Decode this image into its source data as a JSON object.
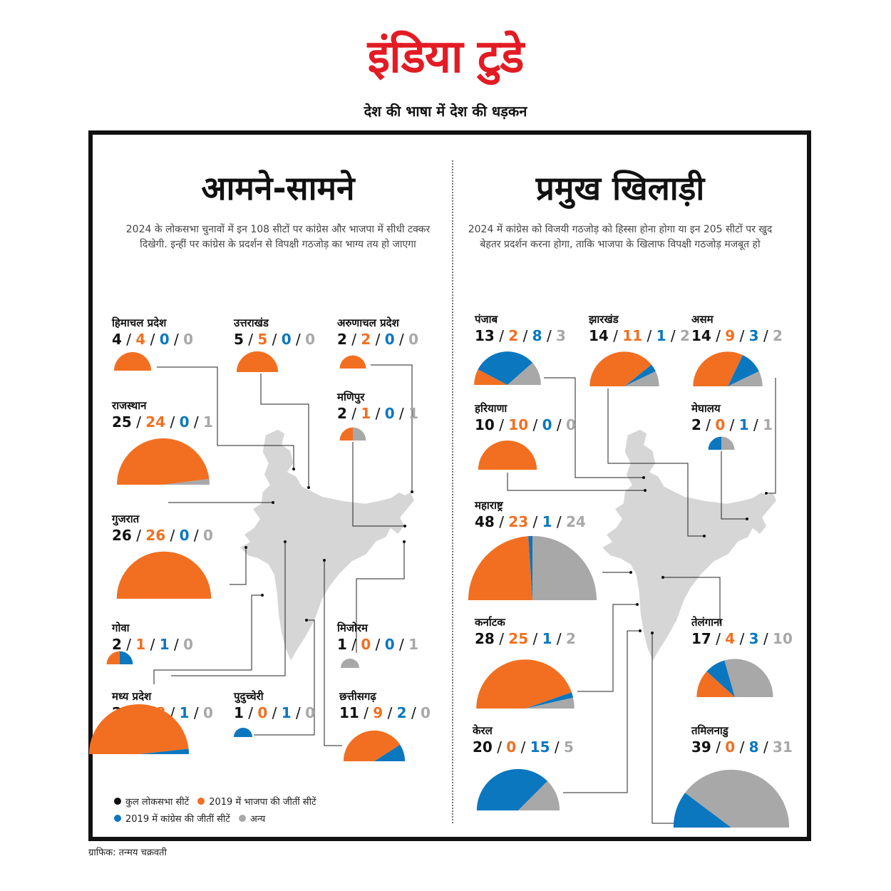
{
  "brand": {
    "name": "इंडिया टुडे",
    "tagline": "देश की भाषा में देश की धड़कन"
  },
  "colors": {
    "total": "#111111",
    "bjp": "#f26f21",
    "congress": "#0b77bf",
    "other": "#a8a8a8",
    "map": "#d6d6d6"
  },
  "sections": {
    "left": {
      "title": "आमने-सामने",
      "description": "2024 के लोकसभा चुनावों में इन 108 सीटों पर कांग्रेस और भाजपा में सीधी टक्कर दिखेगी. इन्हीं पर कांग्रेस के प्रदर्शन से विपक्षी गठजोड़ का भाग्य तय हो जाएगा"
    },
    "right": {
      "title": "प्रमुख खिलाड़ी",
      "description": "2024 में कांग्रेस को विजयी गठजोड़ को हिस्सा होना होगा या इन 205 सीटों पर खुद बेहतर प्रदर्शन करना होगा, ताकि भाजपा के खिलाफ विपक्षी गठजोड़ मजबूत हो"
    }
  },
  "legend": {
    "total": "कुल लोकसभा सीटें",
    "bjp": "2019 में भाजपा की जीतीं सीटें",
    "congress": "2019 में कांग्रेस की जीतीं सीटें",
    "other": "अन्य"
  },
  "credit": "ग्राफिक: तन्मय चक्रवती",
  "chart_data": {
    "type": "pie",
    "subtype": "semicircle",
    "value_order": [
      "total",
      "bjp",
      "congress",
      "other"
    ],
    "series": [
      {
        "name": "हिमाचल प्रदेश",
        "group": "left",
        "total": 4,
        "bjp": 4,
        "congress": 0,
        "other": 0
      },
      {
        "name": "उत्तराखंड",
        "group": "left",
        "total": 5,
        "bjp": 5,
        "congress": 0,
        "other": 0
      },
      {
        "name": "अरुणाचल प्रदेश",
        "group": "left",
        "total": 2,
        "bjp": 2,
        "congress": 0,
        "other": 0
      },
      {
        "name": "राजस्थान",
        "group": "left",
        "total": 25,
        "bjp": 24,
        "congress": 0,
        "other": 1
      },
      {
        "name": "मणिपुर",
        "group": "left",
        "total": 2,
        "bjp": 1,
        "congress": 0,
        "other": 1
      },
      {
        "name": "गुजरात",
        "group": "left",
        "total": 26,
        "bjp": 26,
        "congress": 0,
        "other": 0
      },
      {
        "name": "गोवा",
        "group": "left",
        "total": 2,
        "bjp": 1,
        "congress": 1,
        "other": 0
      },
      {
        "name": "मिजोरम",
        "group": "left",
        "total": 1,
        "bjp": 0,
        "congress": 0,
        "other": 1
      },
      {
        "name": "मध्य प्रदेश",
        "group": "left",
        "total": 29,
        "bjp": 28,
        "congress": 1,
        "other": 0
      },
      {
        "name": "पुदुच्चेरी",
        "group": "left",
        "total": 1,
        "bjp": 0,
        "congress": 1,
        "other": 0
      },
      {
        "name": "छत्तीसगढ़",
        "group": "left",
        "total": 11,
        "bjp": 9,
        "congress": 2,
        "other": 0
      },
      {
        "name": "पंजाब",
        "group": "right",
        "total": 13,
        "bjp": 2,
        "congress": 8,
        "other": 3
      },
      {
        "name": "झारखंड",
        "group": "right",
        "total": 14,
        "bjp": 11,
        "congress": 1,
        "other": 2
      },
      {
        "name": "असम",
        "group": "right",
        "total": 14,
        "bjp": 9,
        "congress": 3,
        "other": 2
      },
      {
        "name": "हरियाणा",
        "group": "right",
        "total": 10,
        "bjp": 10,
        "congress": 0,
        "other": 0
      },
      {
        "name": "मेघालय",
        "group": "right",
        "total": 2,
        "bjp": 0,
        "congress": 1,
        "other": 1
      },
      {
        "name": "महाराष्ट्र",
        "group": "right",
        "total": 48,
        "bjp": 23,
        "congress": 1,
        "other": 24
      },
      {
        "name": "कर्नाटक",
        "group": "right",
        "total": 28,
        "bjp": 25,
        "congress": 1,
        "other": 2
      },
      {
        "name": "तेलंगाना",
        "group": "right",
        "total": 17,
        "bjp": 4,
        "congress": 3,
        "other": 10
      },
      {
        "name": "केरल",
        "group": "right",
        "total": 20,
        "bjp": 0,
        "congress": 15,
        "other": 5
      },
      {
        "name": "तमिलनाडु",
        "group": "right",
        "total": 39,
        "bjp": 0,
        "congress": 8,
        "other": 31
      }
    ]
  }
}
